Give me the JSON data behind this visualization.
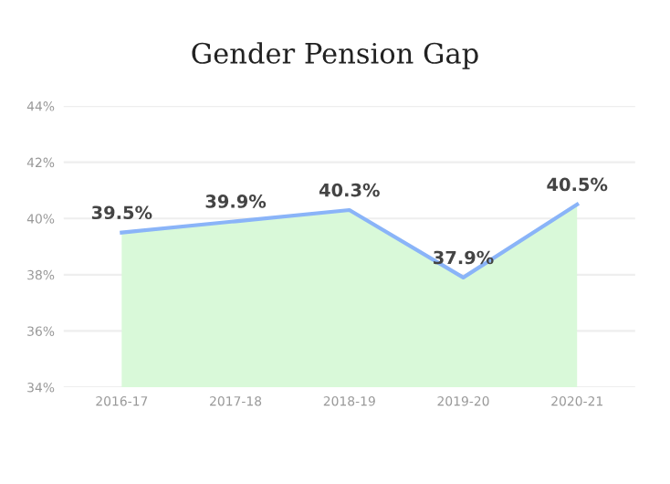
{
  "chart_data": {
    "type": "area",
    "title": "Gender Pension Gap",
    "categories": [
      "2016-17",
      "2017-18",
      "2018-19",
      "2019-20",
      "2020-21"
    ],
    "series": [
      {
        "color": "#8ab4f8",
        "values": [
          39.5,
          39.9,
          40.3,
          37.9,
          40.5
        ],
        "value_labels": [
          "39.5%",
          "39.9%",
          "40.3%",
          "37.9%",
          "40.5%"
        ]
      }
    ],
    "ylim": [
      34,
      44
    ],
    "yticks": [
      {
        "value": 34,
        "label": "34%"
      },
      {
        "value": 36,
        "label": "36%"
      },
      {
        "value": 38,
        "label": "38%"
      },
      {
        "value": 40,
        "label": "40%"
      },
      {
        "value": 42,
        "label": "42%"
      },
      {
        "value": 44,
        "label": "44%"
      }
    ],
    "grid": "y",
    "legend": false
  }
}
